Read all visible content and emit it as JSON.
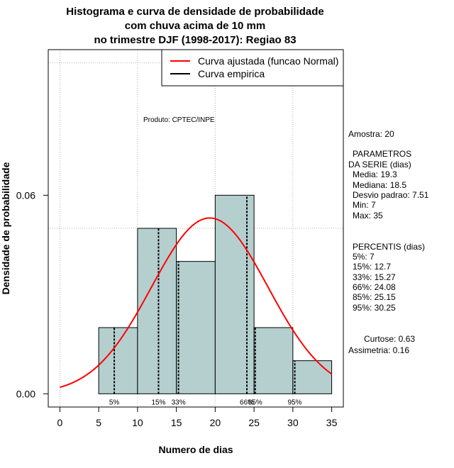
{
  "chart_data": {
    "type": "bar",
    "title_lines": [
      "Histograma e curva de densidade de probabilidade",
      "com chuva acima de 10 mm",
      "no trimestre DJF (1998-2017): Regiao 83"
    ],
    "xlabel": "Numero de dias",
    "ylabel": "Densidade de probabilidade",
    "xlim": [
      -1.5,
      36.5
    ],
    "ylim": [
      -0.004,
      0.104
    ],
    "x_ticks": [
      0,
      5,
      10,
      15,
      20,
      25,
      30,
      35
    ],
    "y_ticks": [
      0.0,
      0.06
    ],
    "y_tick_labels": [
      "0.00",
      "0.06"
    ],
    "bins": [
      {
        "x0": 5,
        "x1": 10,
        "density": 0.02
      },
      {
        "x0": 10,
        "x1": 15,
        "density": 0.05
      },
      {
        "x0": 15,
        "x1": 20,
        "density": 0.04
      },
      {
        "x0": 20,
        "x1": 25,
        "density": 0.06
      },
      {
        "x0": 25,
        "x1": 30,
        "density": 0.02
      },
      {
        "x0": 30,
        "x1": 35,
        "density": 0.01
      }
    ],
    "bar_color": "#b5cfcf",
    "normal_curve": {
      "mean": 19.3,
      "sd": 7.51,
      "x_from": 0,
      "x_to": 35,
      "color": "#ff0000"
    },
    "grid_x": [
      0,
      10,
      20,
      30
    ],
    "grid_y": [
      0.05,
      0.1
    ],
    "legend": {
      "position": "top-right",
      "entries": [
        {
          "label": "Curva ajustada (funcao Normal)",
          "color": "#ff0000"
        },
        {
          "label": "Curva empirica",
          "color": "#000000"
        }
      ]
    },
    "product_label": "Produto: CPTEC/INPE",
    "percentiles": [
      {
        "label": "5%",
        "value": 7
      },
      {
        "label": "15%",
        "value": 12.7
      },
      {
        "label": "33%",
        "value": 15.27
      },
      {
        "label": "66%",
        "value": 24.08
      },
      {
        "label": "85%",
        "value": 25.15
      },
      {
        "label": "95%",
        "value": 30.25
      }
    ],
    "side_panel": [
      {
        "text": "Amostra: 20"
      },
      {
        "text": "PARAMETROS"
      },
      {
        "text": "DA SERIE (dias)"
      },
      {
        "text": "Media: 19.3"
      },
      {
        "text": "Mediana: 18.5"
      },
      {
        "text": "Desvio padrao: 7.51"
      },
      {
        "text": "Min: 7"
      },
      {
        "text": "Max: 35"
      },
      {
        "text": "PERCENTIS (dias)"
      },
      {
        "text": "5%: 7"
      },
      {
        "text": "15%: 12.7"
      },
      {
        "text": "33%: 15.27"
      },
      {
        "text": "66%: 24.08"
      },
      {
        "text": "85%: 25.15"
      },
      {
        "text": "95%: 30.25"
      },
      {
        "text": "Curtose: 0.63"
      },
      {
        "text": "Assimetria: 0.16"
      }
    ]
  }
}
